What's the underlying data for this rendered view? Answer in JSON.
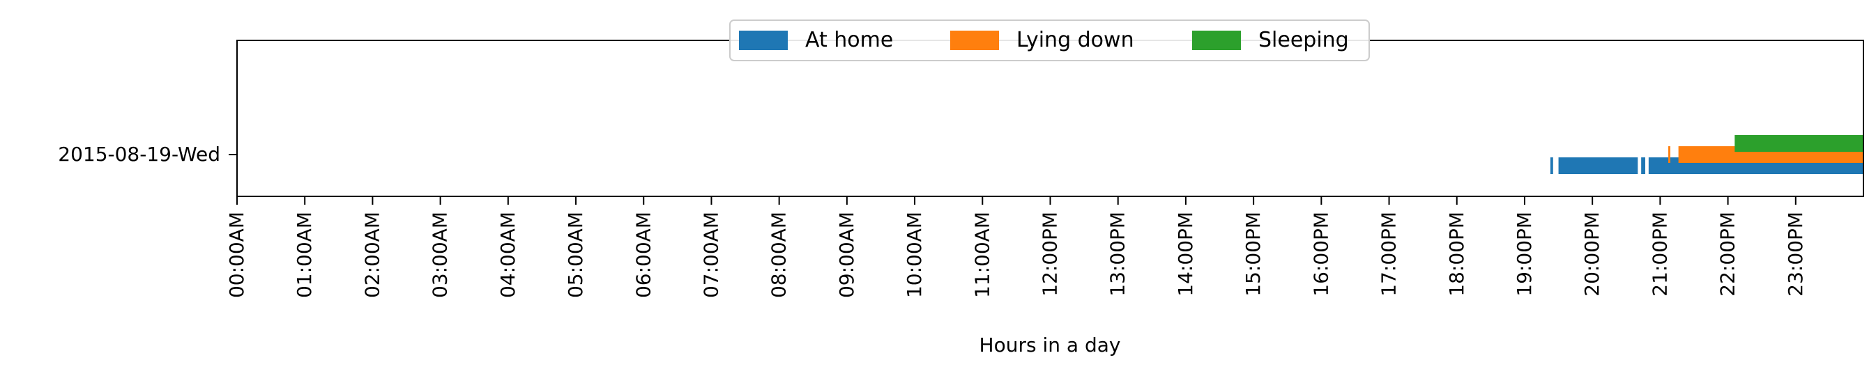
{
  "chart_data": {
    "type": "timeline",
    "title": "",
    "xlabel": "Hours in a day",
    "ylabel": "",
    "xlim": [
      0,
      24
    ],
    "categories": [
      "2015-08-19-Wed"
    ],
    "x_tick_labels": [
      "00:00AM",
      "01:00AM",
      "02:00AM",
      "03:00AM",
      "04:00AM",
      "05:00AM",
      "06:00AM",
      "07:00AM",
      "08:00AM",
      "09:00AM",
      "10:00AM",
      "11:00AM",
      "12:00PM",
      "13:00PM",
      "14:00PM",
      "15:00PM",
      "16:00PM",
      "17:00PM",
      "18:00PM",
      "19:00PM",
      "20:00PM",
      "21:00PM",
      "22:00PM",
      "23:00PM"
    ],
    "legend_position": "top-center",
    "series": [
      {
        "name": "At home",
        "color": "#1f77b4",
        "intervals": [
          [
            19.38,
            19.42
          ],
          [
            19.5,
            20.67
          ],
          [
            20.72,
            20.78
          ],
          [
            20.83,
            24.0
          ]
        ]
      },
      {
        "name": "Lying down",
        "color": "#ff7f0e",
        "intervals": [
          [
            21.12,
            21.15
          ],
          [
            21.27,
            24.0
          ]
        ]
      },
      {
        "name": "Sleeping",
        "color": "#2ca02c",
        "intervals": [
          [
            22.1,
            24.0
          ]
        ]
      }
    ]
  }
}
